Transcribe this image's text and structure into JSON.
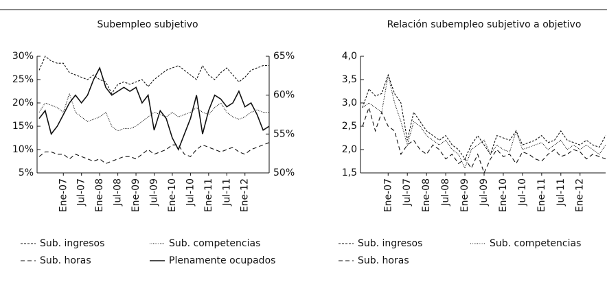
{
  "chart_data": [
    {
      "type": "line",
      "title": "Subempleo subjetivo",
      "categories": [
        null,
        null,
        null,
        null,
        "Ene-07",
        null,
        null,
        "Jul-07",
        null,
        null,
        "Ene-08",
        null,
        null,
        "Jul-08",
        null,
        null,
        "Ene-09",
        null,
        null,
        "Jul-09",
        null,
        null,
        "Ene-10",
        null,
        null,
        "Jul-10",
        null,
        null,
        "Ene-11",
        null,
        null,
        "Jul-11",
        null,
        null,
        "Ene-12",
        null,
        null,
        null,
        null
      ],
      "ylim": [
        5,
        30
      ],
      "yticks": [
        {
          "value": 5,
          "label": "5%"
        },
        {
          "value": 10,
          "label": "10%"
        },
        {
          "value": 15,
          "label": "15%"
        },
        {
          "value": 20,
          "label": "20%"
        },
        {
          "value": 25,
          "label": "25%"
        },
        {
          "value": 30,
          "label": "30%"
        }
      ],
      "y2lim": [
        50,
        65
      ],
      "y2ticks": [
        {
          "value": 50,
          "label": "50%"
        },
        {
          "value": 55,
          "label": "55%"
        },
        {
          "value": 60,
          "label": "60%"
        },
        {
          "value": 65,
          "label": "65%"
        }
      ],
      "series": [
        {
          "name": "Sub. ingresos",
          "color": "#111111",
          "style": "short-dash",
          "values": [
            27,
            30,
            29,
            28.5,
            28.5,
            26.5,
            26,
            25.5,
            25,
            26,
            25,
            24.5,
            22,
            24,
            24.5,
            24,
            24.5,
            25,
            23.5,
            25,
            26,
            27,
            27.5,
            28,
            27,
            26,
            25,
            28,
            26,
            25,
            26.5,
            27.5,
            26,
            24.5,
            25.5,
            27,
            27.5,
            28,
            28
          ]
        },
        {
          "name": "Sub. competencias",
          "color": "#111111",
          "style": "dotted",
          "values": [
            18,
            20,
            19.5,
            19,
            18,
            22,
            18,
            17,
            16,
            16.5,
            17,
            18,
            15,
            14,
            14.5,
            14.5,
            15,
            16,
            17,
            18,
            17.5,
            17,
            18,
            17,
            17.5,
            18,
            19,
            18,
            17.5,
            19,
            20,
            18,
            17,
            16.5,
            17,
            18,
            18.5,
            18,
            18
          ]
        },
        {
          "name": "Sub. horas",
          "color": "#111111",
          "style": "long-dash",
          "values": [
            8.5,
            9.5,
            9.5,
            9,
            9,
            8,
            9,
            8.5,
            8,
            7.5,
            8,
            7,
            7.5,
            8,
            8.5,
            8.5,
            8,
            9,
            10,
            9,
            9.5,
            10,
            11,
            11,
            9,
            8.5,
            10,
            11,
            10.5,
            10,
            9.5,
            10,
            10.5,
            9.5,
            9,
            10,
            10.5,
            11,
            11.5
          ]
        },
        {
          "name": "Plenamente ocupados",
          "color": "#111111",
          "style": "solid",
          "axis": "y2",
          "values": [
            57,
            58,
            55,
            56,
            57.5,
            59,
            60,
            59,
            60,
            62,
            63.5,
            61,
            60,
            60.5,
            61,
            60.5,
            61,
            59,
            60,
            55.5,
            58,
            57,
            54.5,
            53,
            55,
            57,
            60,
            55,
            58,
            60,
            59.5,
            58.5,
            59,
            60.5,
            58.5,
            59,
            57.5,
            55.5,
            56
          ]
        }
      ]
    },
    {
      "type": "line",
      "title": "Relación subempleo subjetivo a objetivo",
      "categories": [
        null,
        null,
        null,
        null,
        "Ene-07",
        null,
        null,
        "Jul-07",
        null,
        null,
        "Ene-08",
        null,
        null,
        "Jul-08",
        null,
        null,
        "Ene-09",
        null,
        null,
        "Jul-09",
        null,
        null,
        "Ene-10",
        null,
        null,
        "Jul-10",
        null,
        null,
        "Ene-11",
        null,
        null,
        "Jul-11",
        null,
        null,
        "Ene-12",
        null,
        null,
        null,
        null
      ],
      "ylim": [
        1.5,
        4.0
      ],
      "yticks": [
        {
          "value": 1.5,
          "label": "1,5"
        },
        {
          "value": 2.0,
          "label": "2,0"
        },
        {
          "value": 2.5,
          "label": "2,5"
        },
        {
          "value": 3.0,
          "label": "3,0"
        },
        {
          "value": 3.5,
          "label": "3,5"
        },
        {
          "value": 4.0,
          "label": "4,0"
        }
      ],
      "series": [
        {
          "name": "Sub. ingresos",
          "color": "#111111",
          "style": "short-dash",
          "values": [
            2.9,
            3.3,
            3.15,
            3.2,
            3.6,
            3.2,
            3.0,
            2.2,
            2.8,
            2.6,
            2.4,
            2.3,
            2.2,
            2.3,
            2.1,
            2.0,
            1.8,
            2.1,
            2.3,
            2.1,
            1.9,
            2.3,
            2.25,
            2.2,
            2.4,
            2.1,
            2.15,
            2.2,
            2.3,
            2.15,
            2.2,
            2.4,
            2.2,
            2.15,
            2.1,
            2.2,
            2.1,
            2.05,
            2.3
          ]
        },
        {
          "name": "Sub. competencias",
          "color": "#111111",
          "style": "dotted",
          "values": [
            2.9,
            3.0,
            2.9,
            2.8,
            3.6,
            3.0,
            2.6,
            2.1,
            2.6,
            2.5,
            2.3,
            2.2,
            2.1,
            2.2,
            2.0,
            1.9,
            1.6,
            2.0,
            2.1,
            2.2,
            1.9,
            2.1,
            2.0,
            1.95,
            2.4,
            2.0,
            2.05,
            2.1,
            2.15,
            2.0,
            2.1,
            2.2,
            2.0,
            2.1,
            2.0,
            2.1,
            2.0,
            1.9,
            2.1
          ]
        },
        {
          "name": "Sub. horas",
          "color": "#111111",
          "style": "long-dash",
          "values": [
            2.5,
            2.9,
            2.4,
            2.8,
            2.5,
            2.4,
            1.9,
            2.1,
            2.2,
            2.0,
            1.9,
            2.1,
            2.0,
            1.8,
            1.9,
            1.7,
            1.8,
            1.6,
            1.9,
            1.5,
            1.8,
            2.0,
            1.85,
            1.9,
            1.7,
            1.95,
            1.9,
            1.8,
            1.75,
            1.9,
            2.0,
            1.85,
            1.9,
            2.0,
            1.95,
            1.8,
            1.9,
            1.85,
            1.8
          ]
        }
      ]
    }
  ]
}
